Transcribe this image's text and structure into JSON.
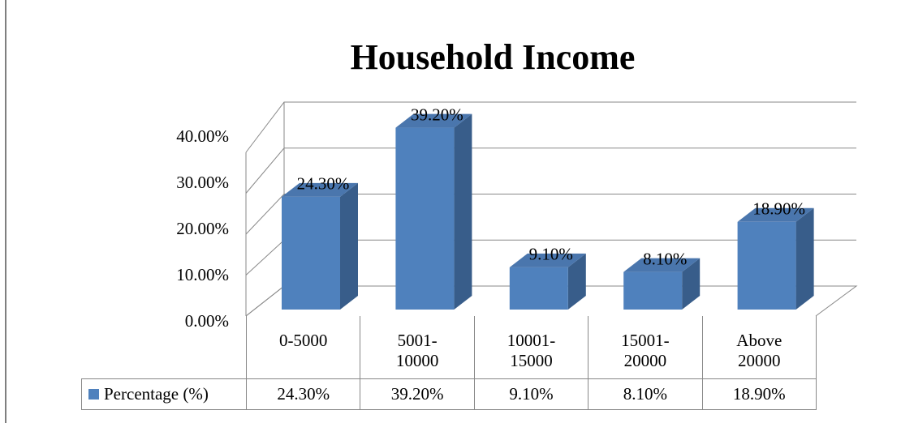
{
  "chart_data": {
    "type": "bar3d",
    "title": "Household Income",
    "categories": [
      "0-5000",
      "5001-10000",
      "10001-15000",
      "15001-20000",
      "Above 20000"
    ],
    "series": [
      {
        "name": "Percentage (%)",
        "color": "#4f81bd",
        "values": [
          24.3,
          39.2,
          9.1,
          8.1,
          18.9
        ],
        "value_labels": [
          "24.30%",
          "39.20%",
          "9.10%",
          "8.10%",
          "18.90%"
        ]
      }
    ],
    "ylim": [
      0,
      40
    ],
    "yticks": [
      {
        "value": 0,
        "label": "0.00%"
      },
      {
        "value": 10,
        "label": "10.00%"
      },
      {
        "value": 20,
        "label": "20.00%"
      },
      {
        "value": 30,
        "label": "30.00%"
      },
      {
        "value": 40,
        "label": "40.00%"
      }
    ],
    "grid": true,
    "data_table": true
  }
}
